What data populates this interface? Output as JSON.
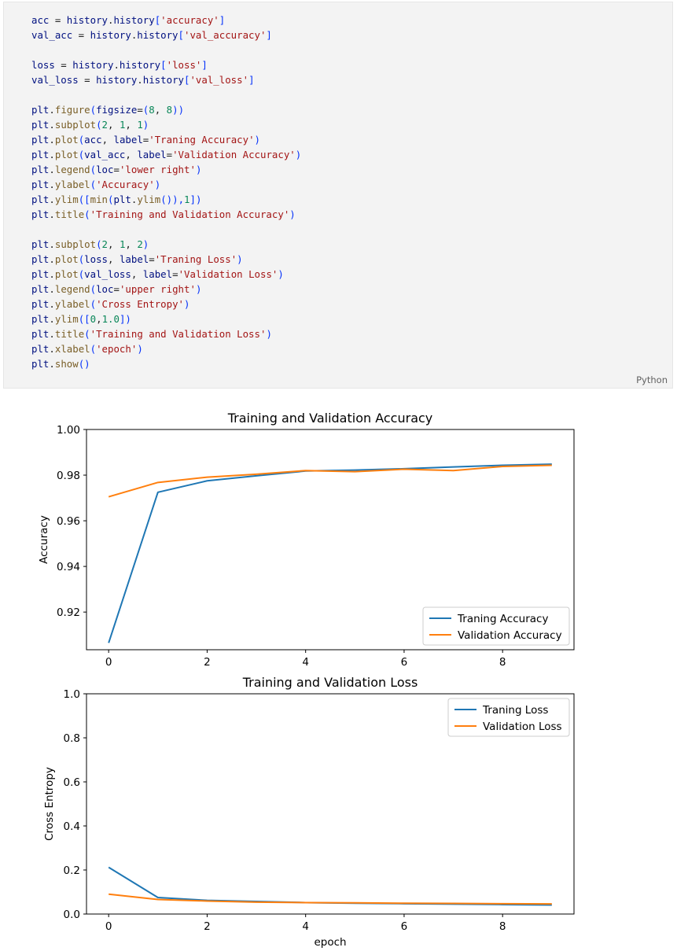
{
  "code_cell": {
    "language_label": "Python",
    "lines": [
      [
        {
          "t": "acc",
          "c": "var"
        },
        {
          "t": " = ",
          "c": "op"
        },
        {
          "t": "history",
          "c": "var"
        },
        {
          "t": ".",
          "c": "op"
        },
        {
          "t": "history",
          "c": "var"
        },
        {
          "t": "[",
          "c": "br"
        },
        {
          "t": "'accuracy'",
          "c": "str"
        },
        {
          "t": "]",
          "c": "br"
        }
      ],
      [
        {
          "t": "val_acc",
          "c": "var"
        },
        {
          "t": " = ",
          "c": "op"
        },
        {
          "t": "history",
          "c": "var"
        },
        {
          "t": ".",
          "c": "op"
        },
        {
          "t": "history",
          "c": "var"
        },
        {
          "t": "[",
          "c": "br"
        },
        {
          "t": "'val_accuracy'",
          "c": "str"
        },
        {
          "t": "]",
          "c": "br"
        }
      ],
      [],
      [
        {
          "t": "loss",
          "c": "var"
        },
        {
          "t": " = ",
          "c": "op"
        },
        {
          "t": "history",
          "c": "var"
        },
        {
          "t": ".",
          "c": "op"
        },
        {
          "t": "history",
          "c": "var"
        },
        {
          "t": "[",
          "c": "br"
        },
        {
          "t": "'loss'",
          "c": "str"
        },
        {
          "t": "]",
          "c": "br"
        }
      ],
      [
        {
          "t": "val_loss",
          "c": "var"
        },
        {
          "t": " = ",
          "c": "op"
        },
        {
          "t": "history",
          "c": "var"
        },
        {
          "t": ".",
          "c": "op"
        },
        {
          "t": "history",
          "c": "var"
        },
        {
          "t": "[",
          "c": "br"
        },
        {
          "t": "'val_loss'",
          "c": "str"
        },
        {
          "t": "]",
          "c": "br"
        }
      ],
      [],
      [
        {
          "t": "plt",
          "c": "var"
        },
        {
          "t": ".",
          "c": "op"
        },
        {
          "t": "figure",
          "c": "fn"
        },
        {
          "t": "(",
          "c": "br"
        },
        {
          "t": "figsize",
          "c": "var"
        },
        {
          "t": "=",
          "c": "op"
        },
        {
          "t": "(",
          "c": "br"
        },
        {
          "t": "8",
          "c": "num"
        },
        {
          "t": ", ",
          "c": "op"
        },
        {
          "t": "8",
          "c": "num"
        },
        {
          "t": "))",
          "c": "br"
        }
      ],
      [
        {
          "t": "plt",
          "c": "var"
        },
        {
          "t": ".",
          "c": "op"
        },
        {
          "t": "subplot",
          "c": "fn"
        },
        {
          "t": "(",
          "c": "br"
        },
        {
          "t": "2",
          "c": "num"
        },
        {
          "t": ", ",
          "c": "op"
        },
        {
          "t": "1",
          "c": "num"
        },
        {
          "t": ", ",
          "c": "op"
        },
        {
          "t": "1",
          "c": "num"
        },
        {
          "t": ")",
          "c": "br"
        }
      ],
      [
        {
          "t": "plt",
          "c": "var"
        },
        {
          "t": ".",
          "c": "op"
        },
        {
          "t": "plot",
          "c": "fn"
        },
        {
          "t": "(",
          "c": "br"
        },
        {
          "t": "acc",
          "c": "var"
        },
        {
          "t": ", ",
          "c": "op"
        },
        {
          "t": "label",
          "c": "var"
        },
        {
          "t": "=",
          "c": "op"
        },
        {
          "t": "'Traning Accuracy'",
          "c": "str"
        },
        {
          "t": ")",
          "c": "br"
        }
      ],
      [
        {
          "t": "plt",
          "c": "var"
        },
        {
          "t": ".",
          "c": "op"
        },
        {
          "t": "plot",
          "c": "fn"
        },
        {
          "t": "(",
          "c": "br"
        },
        {
          "t": "val_acc",
          "c": "var"
        },
        {
          "t": ", ",
          "c": "op"
        },
        {
          "t": "label",
          "c": "var"
        },
        {
          "t": "=",
          "c": "op"
        },
        {
          "t": "'Validation Accuracy'",
          "c": "str"
        },
        {
          "t": ")",
          "c": "br"
        }
      ],
      [
        {
          "t": "plt",
          "c": "var"
        },
        {
          "t": ".",
          "c": "op"
        },
        {
          "t": "legend",
          "c": "fn"
        },
        {
          "t": "(",
          "c": "br"
        },
        {
          "t": "loc",
          "c": "var"
        },
        {
          "t": "=",
          "c": "op"
        },
        {
          "t": "'lower right'",
          "c": "str"
        },
        {
          "t": ")",
          "c": "br"
        }
      ],
      [
        {
          "t": "plt",
          "c": "var"
        },
        {
          "t": ".",
          "c": "op"
        },
        {
          "t": "ylabel",
          "c": "fn"
        },
        {
          "t": "(",
          "c": "br"
        },
        {
          "t": "'Accuracy'",
          "c": "str"
        },
        {
          "t": ")",
          "c": "br"
        }
      ],
      [
        {
          "t": "plt",
          "c": "var"
        },
        {
          "t": ".",
          "c": "op"
        },
        {
          "t": "ylim",
          "c": "fn"
        },
        {
          "t": "([",
          "c": "br"
        },
        {
          "t": "min",
          "c": "fn"
        },
        {
          "t": "(",
          "c": "br"
        },
        {
          "t": "plt",
          "c": "var"
        },
        {
          "t": ".",
          "c": "op"
        },
        {
          "t": "ylim",
          "c": "fn"
        },
        {
          "t": "()),",
          "c": "br"
        },
        {
          "t": "1",
          "c": "num"
        },
        {
          "t": "])",
          "c": "br"
        }
      ],
      [
        {
          "t": "plt",
          "c": "var"
        },
        {
          "t": ".",
          "c": "op"
        },
        {
          "t": "title",
          "c": "fn"
        },
        {
          "t": "(",
          "c": "br"
        },
        {
          "t": "'Training and Validation Accuracy'",
          "c": "str"
        },
        {
          "t": ")",
          "c": "br"
        }
      ],
      [],
      [
        {
          "t": "plt",
          "c": "var"
        },
        {
          "t": ".",
          "c": "op"
        },
        {
          "t": "subplot",
          "c": "fn"
        },
        {
          "t": "(",
          "c": "br"
        },
        {
          "t": "2",
          "c": "num"
        },
        {
          "t": ", ",
          "c": "op"
        },
        {
          "t": "1",
          "c": "num"
        },
        {
          "t": ", ",
          "c": "op"
        },
        {
          "t": "2",
          "c": "num"
        },
        {
          "t": ")",
          "c": "br"
        }
      ],
      [
        {
          "t": "plt",
          "c": "var"
        },
        {
          "t": ".",
          "c": "op"
        },
        {
          "t": "plot",
          "c": "fn"
        },
        {
          "t": "(",
          "c": "br"
        },
        {
          "t": "loss",
          "c": "var"
        },
        {
          "t": ", ",
          "c": "op"
        },
        {
          "t": "label",
          "c": "var"
        },
        {
          "t": "=",
          "c": "op"
        },
        {
          "t": "'Traning Loss'",
          "c": "str"
        },
        {
          "t": ")",
          "c": "br"
        }
      ],
      [
        {
          "t": "plt",
          "c": "var"
        },
        {
          "t": ".",
          "c": "op"
        },
        {
          "t": "plot",
          "c": "fn"
        },
        {
          "t": "(",
          "c": "br"
        },
        {
          "t": "val_loss",
          "c": "var"
        },
        {
          "t": ", ",
          "c": "op"
        },
        {
          "t": "label",
          "c": "var"
        },
        {
          "t": "=",
          "c": "op"
        },
        {
          "t": "'Validation Loss'",
          "c": "str"
        },
        {
          "t": ")",
          "c": "br"
        }
      ],
      [
        {
          "t": "plt",
          "c": "var"
        },
        {
          "t": ".",
          "c": "op"
        },
        {
          "t": "legend",
          "c": "fn"
        },
        {
          "t": "(",
          "c": "br"
        },
        {
          "t": "loc",
          "c": "var"
        },
        {
          "t": "=",
          "c": "op"
        },
        {
          "t": "'upper right'",
          "c": "str"
        },
        {
          "t": ")",
          "c": "br"
        }
      ],
      [
        {
          "t": "plt",
          "c": "var"
        },
        {
          "t": ".",
          "c": "op"
        },
        {
          "t": "ylabel",
          "c": "fn"
        },
        {
          "t": "(",
          "c": "br"
        },
        {
          "t": "'Cross Entropy'",
          "c": "str"
        },
        {
          "t": ")",
          "c": "br"
        }
      ],
      [
        {
          "t": "plt",
          "c": "var"
        },
        {
          "t": ".",
          "c": "op"
        },
        {
          "t": "ylim",
          "c": "fn"
        },
        {
          "t": "([",
          "c": "br"
        },
        {
          "t": "0",
          "c": "num"
        },
        {
          "t": ",",
          "c": "op"
        },
        {
          "t": "1.0",
          "c": "num"
        },
        {
          "t": "])",
          "c": "br"
        }
      ],
      [
        {
          "t": "plt",
          "c": "var"
        },
        {
          "t": ".",
          "c": "op"
        },
        {
          "t": "title",
          "c": "fn"
        },
        {
          "t": "(",
          "c": "br"
        },
        {
          "t": "'Training and Validation Loss'",
          "c": "str"
        },
        {
          "t": ")",
          "c": "br"
        }
      ],
      [
        {
          "t": "plt",
          "c": "var"
        },
        {
          "t": ".",
          "c": "op"
        },
        {
          "t": "xlabel",
          "c": "fn"
        },
        {
          "t": "(",
          "c": "br"
        },
        {
          "t": "'epoch'",
          "c": "str"
        },
        {
          "t": ")",
          "c": "br"
        }
      ],
      [
        {
          "t": "plt",
          "c": "var"
        },
        {
          "t": ".",
          "c": "op"
        },
        {
          "t": "show",
          "c": "fn"
        },
        {
          "t": "()",
          "c": "br"
        }
      ]
    ]
  },
  "colors": {
    "series_1": "#1f77b4",
    "series_2": "#ff7f0e"
  },
  "chart_data": [
    {
      "type": "line",
      "title": "Training and Validation Accuracy",
      "xlabel": "",
      "ylabel": "Accuracy",
      "xlim": [
        -0.45,
        9.45
      ],
      "ylim": [
        0.9035,
        1.0
      ],
      "xticks": [
        "0",
        "2",
        "4",
        "6",
        "8"
      ],
      "yticks": [
        "0.92",
        "0.94",
        "0.96",
        "0.98",
        "1.00"
      ],
      "legend_position": "lower right",
      "x": [
        0,
        1,
        2,
        3,
        4,
        5,
        6,
        7,
        8,
        9
      ],
      "series": [
        {
          "name": "Traning Accuracy",
          "values": [
            0.9065,
            0.9725,
            0.9775,
            0.9797,
            0.9818,
            0.9822,
            0.9828,
            0.9836,
            0.9843,
            0.9848
          ]
        },
        {
          "name": "Validation Accuracy",
          "values": [
            0.9705,
            0.9768,
            0.9791,
            0.9804,
            0.982,
            0.9815,
            0.9826,
            0.982,
            0.9838,
            0.9843
          ]
        }
      ]
    },
    {
      "type": "line",
      "title": "Training and Validation Loss",
      "xlabel": "epoch",
      "ylabel": "Cross Entropy",
      "xlim": [
        -0.45,
        9.45
      ],
      "ylim": [
        0.0,
        1.0
      ],
      "xticks": [
        "0",
        "2",
        "4",
        "6",
        "8"
      ],
      "yticks": [
        "0.0",
        "0.2",
        "0.4",
        "0.6",
        "0.8",
        "1.0"
      ],
      "legend_position": "upper right",
      "x": [
        0,
        1,
        2,
        3,
        4,
        5,
        6,
        7,
        8,
        9
      ],
      "series": [
        {
          "name": "Traning Loss",
          "values": [
            0.212,
            0.075,
            0.062,
            0.057,
            0.052,
            0.049,
            0.047,
            0.045,
            0.043,
            0.041
          ]
        },
        {
          "name": "Validation Loss",
          "values": [
            0.09,
            0.066,
            0.059,
            0.054,
            0.052,
            0.051,
            0.049,
            0.048,
            0.047,
            0.046
          ]
        }
      ]
    }
  ]
}
